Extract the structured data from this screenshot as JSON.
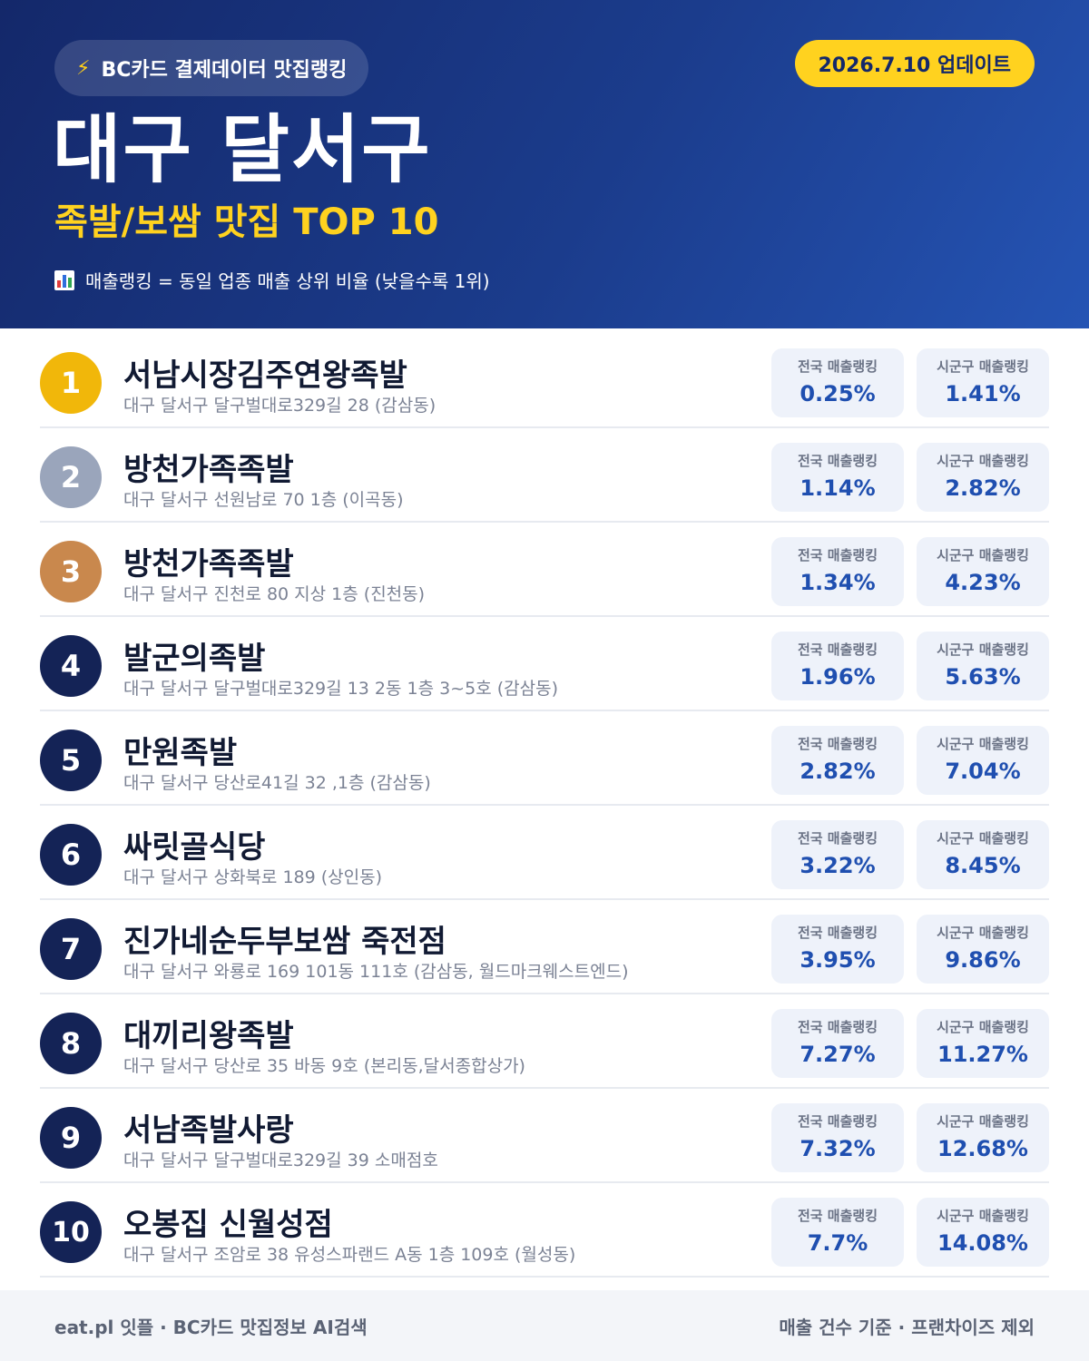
{
  "header": {
    "brand_label": "BC카드 결제데이터 맛집랭킹",
    "update_label": "2026.7.10 업데이트",
    "title": "대구 달서구",
    "subtitle": "족발/보쌈 맛집 TOP 10",
    "note": "매출랭킹 = 동일 업종 매출 상위 비율 (낮을수록 1위)"
  },
  "labels": {
    "national": "전국 매출랭킹",
    "local": "시군구 매출랭킹"
  },
  "colors": {
    "gold": "#f1b70a",
    "silver": "#9aa5bb",
    "bronze": "#c9884d",
    "navy": "#142356",
    "accent_yellow": "#ffd21f",
    "value_blue": "#1f4fb0"
  },
  "restaurants": [
    {
      "rank": "1",
      "name": "서남시장김주연왕족발",
      "address": "대구 달서구 달구벌대로329길 28 (감삼동)",
      "national": "0.25%",
      "local": "1.41%"
    },
    {
      "rank": "2",
      "name": "방천가족족발",
      "address": "대구 달서구 선원남로 70 1층 (이곡동)",
      "national": "1.14%",
      "local": "2.82%"
    },
    {
      "rank": "3",
      "name": "방천가족족발",
      "address": "대구 달서구 진천로 80 지상 1층 (진천동)",
      "national": "1.34%",
      "local": "4.23%"
    },
    {
      "rank": "4",
      "name": "발군의족발",
      "address": "대구 달서구 달구벌대로329길 13 2동 1층 3~5호 (감삼동)",
      "national": "1.96%",
      "local": "5.63%"
    },
    {
      "rank": "5",
      "name": "만원족발",
      "address": "대구 달서구 당산로41길 32 ,1층 (감삼동)",
      "national": "2.82%",
      "local": "7.04%"
    },
    {
      "rank": "6",
      "name": "싸릿골식당",
      "address": "대구 달서구 상화북로 189 (상인동)",
      "national": "3.22%",
      "local": "8.45%"
    },
    {
      "rank": "7",
      "name": "진가네순두부보쌈 죽전점",
      "address": "대구 달서구 와룡로 169 101동 111호 (감삼동, 월드마크웨스트엔드)",
      "national": "3.95%",
      "local": "9.86%"
    },
    {
      "rank": "8",
      "name": "대끼리왕족발",
      "address": "대구 달서구 당산로 35 바동 9호 (본리동,달서종합상가)",
      "national": "7.27%",
      "local": "11.27%"
    },
    {
      "rank": "9",
      "name": "서남족발사랑",
      "address": "대구 달서구 달구벌대로329길 39 소매점호",
      "national": "7.32%",
      "local": "12.68%"
    },
    {
      "rank": "10",
      "name": "오봉집 신월성점",
      "address": "대구 달서구 조암로 38 유성스파랜드 A동 1층 109호 (월성동)",
      "national": "7.7%",
      "local": "14.08%"
    }
  ],
  "footer": {
    "left": "eat.pl 잇플 · BC카드 맛집정보 AI검색",
    "right": "매출 건수 기준 · 프랜차이즈 제외"
  }
}
